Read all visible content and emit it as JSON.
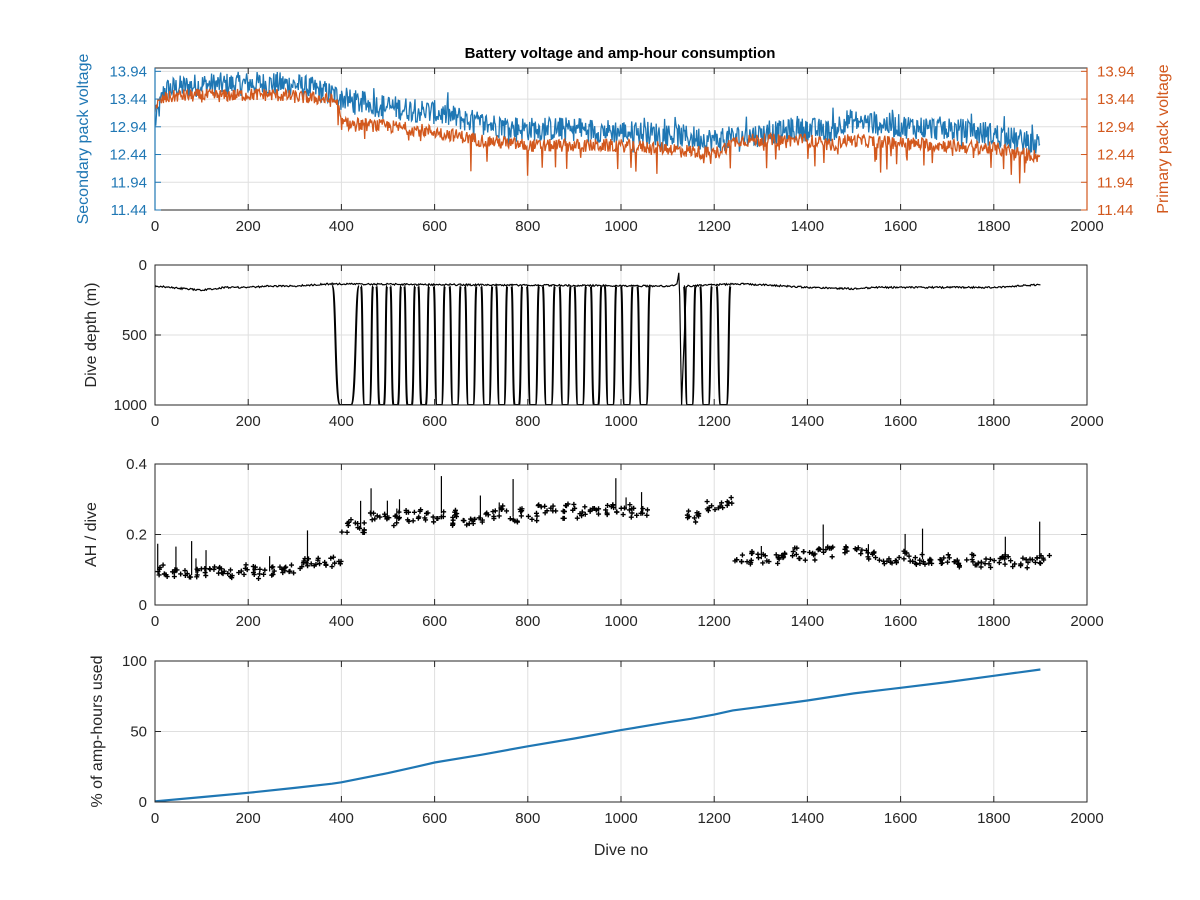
{
  "figure": {
    "title": "Battery voltage and amp-hour consumption"
  },
  "colors": {
    "secondary": "#1f77b4",
    "primary": "#d2581d",
    "black": "#000000",
    "axis": "#262626",
    "grid": "#dfdfdf"
  },
  "chart_data": [
    {
      "type": "line",
      "title": "Battery voltage and amp-hour consumption",
      "xlabel": "",
      "ylabel_left": "Secondary pack voltage",
      "ylabel_right": "Primary pack voltage",
      "xlim": [
        0,
        2000
      ],
      "ylim": [
        11.44,
        14.0
      ],
      "x_ticks": [
        0,
        200,
        400,
        600,
        800,
        1000,
        1200,
        1400,
        1600,
        1800,
        2000
      ],
      "y_ticks": [
        11.44,
        11.94,
        12.44,
        12.94,
        13.44,
        13.94
      ],
      "grid": true,
      "series": [
        {
          "name": "Secondary pack voltage",
          "axis": "left",
          "x": [
            0,
            20,
            50,
            100,
            150,
            200,
            250,
            300,
            350,
            390,
            420,
            500,
            600,
            700,
            800,
            900,
            1000,
            1100,
            1200,
            1250,
            1300,
            1400,
            1450,
            1480,
            1550,
            1600,
            1700,
            1800,
            1850,
            1900
          ],
          "y": [
            13.0,
            13.6,
            13.65,
            13.7,
            13.7,
            13.72,
            13.72,
            13.7,
            13.6,
            13.5,
            13.4,
            13.3,
            13.2,
            13.0,
            12.9,
            12.9,
            12.85,
            12.8,
            12.7,
            12.75,
            12.8,
            12.9,
            12.85,
            13.05,
            13.0,
            12.95,
            12.9,
            12.8,
            12.7,
            12.6
          ]
        },
        {
          "name": "Primary pack voltage",
          "axis": "right",
          "x": [
            0,
            20,
            50,
            100,
            150,
            200,
            250,
            300,
            350,
            390,
            400,
            500,
            600,
            700,
            800,
            900,
            1000,
            1100,
            1200,
            1250,
            1300,
            1400,
            1450,
            1480,
            1600,
            1700,
            1800,
            1900
          ],
          "y": [
            13.3,
            13.45,
            13.5,
            13.5,
            13.5,
            13.52,
            13.52,
            13.48,
            13.45,
            13.4,
            13.0,
            12.95,
            12.85,
            12.7,
            12.6,
            12.6,
            12.6,
            12.55,
            12.45,
            12.7,
            12.7,
            12.7,
            12.6,
            12.7,
            12.65,
            12.6,
            12.55,
            12.4
          ]
        }
      ]
    },
    {
      "type": "line",
      "xlabel": "",
      "ylabel": "Dive depth (m)",
      "xlim": [
        0,
        2000
      ],
      "ylim": [
        0,
        1000
      ],
      "y_reversed": true,
      "x_ticks": [
        0,
        200,
        400,
        600,
        800,
        1000,
        1200,
        1400,
        1600,
        1800,
        2000
      ],
      "y_ticks": [
        0,
        500,
        1000
      ],
      "grid": true,
      "series": [
        {
          "name": "",
          "x": [
            0,
            50,
            100,
            150,
            200,
            250,
            300,
            350,
            380,
            1060,
            1100,
            1120,
            1125,
            1130,
            1140,
            1150,
            1240,
            1300,
            1400,
            1500,
            1550,
            1600,
            1700,
            1800,
            1900
          ],
          "y": [
            150,
            165,
            180,
            160,
            160,
            150,
            150,
            140,
            135,
            150,
            150,
            140,
            30,
            1000,
            150,
            150,
            135,
            140,
            160,
            170,
            160,
            160,
            160,
            160,
            140
          ]
        }
      ],
      "deep_dive_segments": [
        {
          "start": 380,
          "end": 438
        },
        {
          "start": 442,
          "end": 468
        },
        {
          "start": 475,
          "end": 498
        },
        {
          "start": 505,
          "end": 528
        },
        {
          "start": 535,
          "end": 558
        },
        {
          "start": 565,
          "end": 588
        },
        {
          "start": 598,
          "end": 622
        },
        {
          "start": 632,
          "end": 656
        },
        {
          "start": 665,
          "end": 690
        },
        {
          "start": 700,
          "end": 724
        },
        {
          "start": 732,
          "end": 756
        },
        {
          "start": 765,
          "end": 788
        },
        {
          "start": 798,
          "end": 824
        },
        {
          "start": 832,
          "end": 858
        },
        {
          "start": 868,
          "end": 892
        },
        {
          "start": 900,
          "end": 925
        },
        {
          "start": 935,
          "end": 958
        },
        {
          "start": 965,
          "end": 990
        },
        {
          "start": 1000,
          "end": 1025
        },
        {
          "start": 1035,
          "end": 1062
        },
        {
          "start": 1135,
          "end": 1160
        },
        {
          "start": 1170,
          "end": 1195
        },
        {
          "start": 1205,
          "end": 1235
        }
      ],
      "deep_dive_depth": 1000,
      "surface_depth": 150
    },
    {
      "type": "scatter",
      "xlabel": "",
      "ylabel": "AH / dive",
      "xlim": [
        0,
        2000
      ],
      "ylim": [
        0,
        0.4
      ],
      "x_ticks": [
        0,
        200,
        400,
        600,
        800,
        1000,
        1200,
        1400,
        1600,
        1800,
        2000
      ],
      "y_ticks": [
        0,
        0.2,
        0.4
      ],
      "grid": true,
      "series": [
        {
          "name": "",
          "x": [
            0,
            20,
            40,
            60,
            80,
            100,
            120,
            140,
            160,
            180,
            200,
            220,
            240,
            260,
            280,
            300,
            320,
            340,
            360,
            380,
            400,
            420,
            440,
            460,
            480,
            500,
            520,
            540,
            560,
            580,
            600,
            620,
            640,
            660,
            680,
            700,
            720,
            740,
            760,
            780,
            800,
            820,
            840,
            860,
            880,
            900,
            920,
            940,
            960,
            980,
            1000,
            1020,
            1040,
            1140,
            1160,
            1180,
            1200,
            1220,
            1240,
            1260,
            1280,
            1300,
            1320,
            1340,
            1360,
            1380,
            1400,
            1420,
            1440,
            1480,
            1500,
            1520,
            1540,
            1560,
            1580,
            1600,
            1620,
            1640,
            1660,
            1680,
            1700,
            1720,
            1740,
            1760,
            1780,
            1800,
            1820,
            1840,
            1860,
            1880,
            1900
          ],
          "y": [
            0.1,
            0.09,
            0.09,
            0.085,
            0.09,
            0.09,
            0.095,
            0.09,
            0.09,
            0.1,
            0.095,
            0.09,
            0.095,
            0.1,
            0.1,
            0.11,
            0.12,
            0.12,
            0.12,
            0.13,
            0.22,
            0.23,
            0.22,
            0.25,
            0.25,
            0.24,
            0.26,
            0.25,
            0.26,
            0.25,
            0.26,
            0.24,
            0.26,
            0.23,
            0.24,
            0.25,
            0.26,
            0.27,
            0.25,
            0.26,
            0.25,
            0.27,
            0.27,
            0.26,
            0.28,
            0.26,
            0.27,
            0.26,
            0.27,
            0.27,
            0.27,
            0.26,
            0.26,
            0.26,
            0.25,
            0.28,
            0.28,
            0.29,
            0.13,
            0.13,
            0.14,
            0.13,
            0.13,
            0.14,
            0.15,
            0.14,
            0.14,
            0.15,
            0.15,
            0.16,
            0.15,
            0.14,
            0.14,
            0.13,
            0.13,
            0.14,
            0.13,
            0.13,
            0.13,
            0.13,
            0.13,
            0.12,
            0.13,
            0.12,
            0.12,
            0.13,
            0.13,
            0.12,
            0.12,
            0.13,
            0.13
          ]
        }
      ]
    },
    {
      "type": "line",
      "xlabel": "Dive no",
      "ylabel": "% of amp-hours used",
      "xlim": [
        0,
        2000
      ],
      "ylim": [
        0,
        100
      ],
      "x_ticks": [
        0,
        200,
        400,
        600,
        800,
        1000,
        1200,
        1400,
        1600,
        1800,
        2000
      ],
      "y_ticks": [
        0,
        50,
        100
      ],
      "grid": true,
      "series": [
        {
          "name": "",
          "x": [
            0,
            100,
            200,
            300,
            380,
            400,
            500,
            560,
            600,
            700,
            800,
            900,
            1000,
            1100,
            1150,
            1200,
            1240,
            1300,
            1400,
            1500,
            1600,
            1700,
            1800,
            1900
          ],
          "y": [
            0.5,
            3.5,
            6.5,
            10,
            13,
            14,
            20.5,
            25,
            28,
            33.5,
            39.5,
            45,
            51,
            56.5,
            59,
            62,
            65,
            67.5,
            72,
            77,
            81,
            85,
            89.5,
            94
          ]
        }
      ]
    }
  ]
}
